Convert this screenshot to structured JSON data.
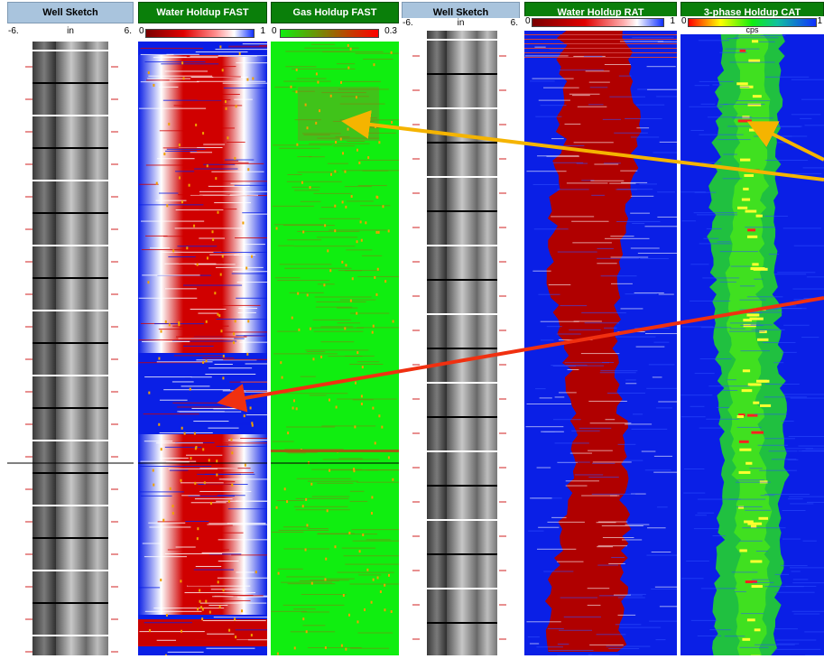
{
  "tracks": [
    {
      "title": "Well Sketch",
      "scale_left": "-6.",
      "scale_unit": "in",
      "scale_right": "6."
    },
    {
      "title": "Water Holdup FAST",
      "scale_left": "0",
      "scale_right": "1"
    },
    {
      "title": "Gas Holdup FAST",
      "scale_left": "0",
      "scale_right": "0.3"
    },
    {
      "title": "Well Sketch",
      "scale_left": "-6.",
      "scale_unit": "in",
      "scale_right": "6."
    },
    {
      "title": "Water Holdup RAT",
      "scale_left": "0",
      "scale_right": "1"
    },
    {
      "title": "3-phase Holdup CAT",
      "scale_left": "0",
      "scale_unit": "cps",
      "scale_right": "1"
    }
  ],
  "colors": {
    "header_green": "#0a7f0a",
    "header_blue": "#a9c4dd",
    "water": "#c80000",
    "oil_blue": "#0a1fe6",
    "gas_green": "#10ee10",
    "arrow_yellow": "#f5b400",
    "arrow_red": "#f03010"
  },
  "annotations": {
    "yellow_arrows": "gas-indicator-arrows",
    "red_arrow": "water-indicator-arrow"
  }
}
